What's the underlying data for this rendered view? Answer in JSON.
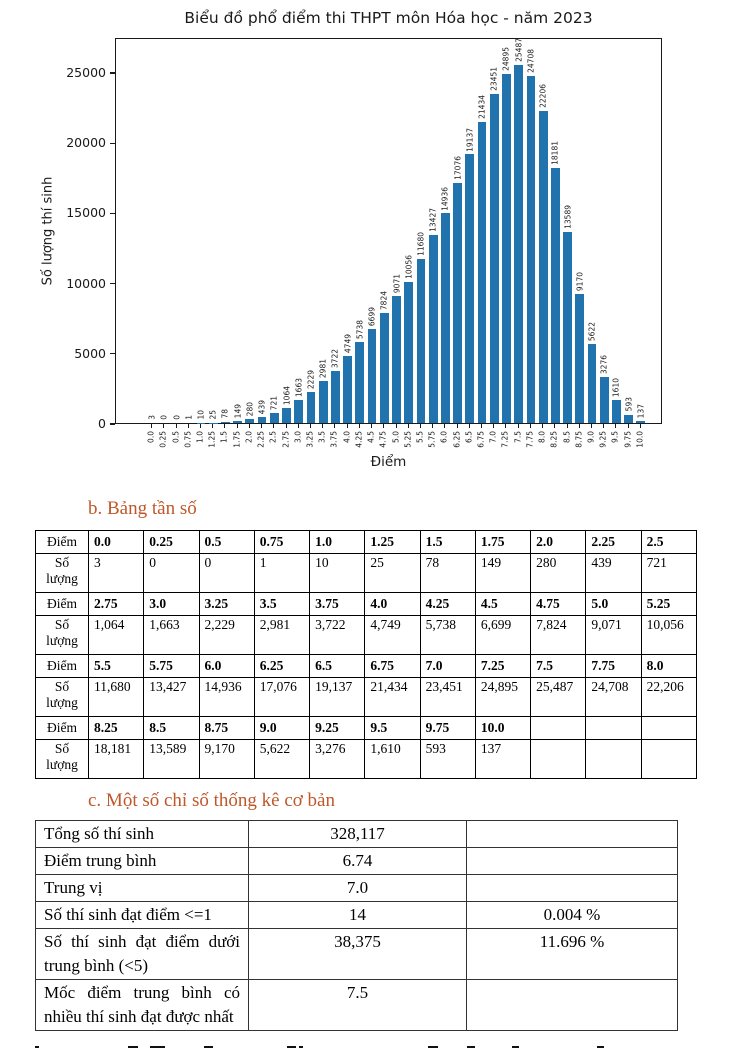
{
  "chart_data": {
    "type": "bar",
    "title": "Biểu đồ phổ điểm thi THPT môn Hóa học - năm 2023",
    "xlabel": "Điểm",
    "ylabel": "Số lượng thí sinh",
    "categories": [
      "0.0",
      "0.25",
      "0.5",
      "0.75",
      "1.0",
      "1.25",
      "1.5",
      "1.75",
      "2.0",
      "2.25",
      "2.5",
      "2.75",
      "3.0",
      "3.25",
      "3.5",
      "3.75",
      "4.0",
      "4.25",
      "4.5",
      "4.75",
      "5.0",
      "5.25",
      "5.5",
      "5.75",
      "6.0",
      "6.25",
      "6.5",
      "6.75",
      "7.0",
      "7.25",
      "7.5",
      "7.75",
      "8.0",
      "8.25",
      "8.5",
      "8.75",
      "9.0",
      "9.25",
      "9.5",
      "9.75",
      "10.0"
    ],
    "values": [
      3,
      0,
      0,
      1,
      10,
      25,
      78,
      149,
      280,
      439,
      721,
      1064,
      1663,
      2229,
      2981,
      3722,
      4749,
      5738,
      6699,
      7824,
      9071,
      10056,
      11680,
      13427,
      14936,
      17076,
      19137,
      21434,
      23451,
      24895,
      25487,
      24708,
      22206,
      18181,
      13589,
      9170,
      5622,
      3276,
      1610,
      593,
      137
    ],
    "yticks": [
      0,
      5000,
      10000,
      15000,
      20000,
      25000
    ],
    "ylim": [
      0,
      27500
    ],
    "grid": false,
    "legend": null,
    "value_labels_rotated": true,
    "bar_color": "#2173ae"
  },
  "sections": {
    "freq_heading": "b. Bảng tần số",
    "stats_heading": "c. Một số chỉ số thống kê cơ bản",
    "heading_color": "#bf5728"
  },
  "freq_table": {
    "score_row_label": "Điểm",
    "count_row_label": "Số lượng",
    "columns_per_row": 11,
    "row_pairs": [
      {
        "scores": [
          "0.0",
          "0.25",
          "0.5",
          "0.75",
          "1.0",
          "1.25",
          "1.5",
          "1.75",
          "2.0",
          "2.25",
          "2.5"
        ],
        "counts": [
          "3",
          "0",
          "0",
          "1",
          "10",
          "25",
          "78",
          "149",
          "280",
          "439",
          "721"
        ]
      },
      {
        "scores": [
          "2.75",
          "3.0",
          "3.25",
          "3.5",
          "3.75",
          "4.0",
          "4.25",
          "4.5",
          "4.75",
          "5.0",
          "5.25"
        ],
        "counts": [
          "1,064",
          "1,663",
          "2,229",
          "2,981",
          "3,722",
          "4,749",
          "5,738",
          "6,699",
          "7,824",
          "9,071",
          "10,056"
        ]
      },
      {
        "scores": [
          "5.5",
          "5.75",
          "6.0",
          "6.25",
          "6.5",
          "6.75",
          "7.0",
          "7.25",
          "7.5",
          "7.75",
          "8.0"
        ],
        "counts": [
          "11,680",
          "13,427",
          "14,936",
          "17,076",
          "19,137",
          "21,434",
          "23,451",
          "24,895",
          "25,487",
          "24,708",
          "22,206"
        ]
      },
      {
        "scores": [
          "8.25",
          "8.5",
          "8.75",
          "9.0",
          "9.25",
          "9.5",
          "9.75",
          "10.0",
          "",
          "",
          ""
        ],
        "counts": [
          "18,181",
          "13,589",
          "9,170",
          "5,622",
          "3,276",
          "1,610",
          "593",
          "137",
          "",
          "",
          ""
        ]
      }
    ]
  },
  "stats_table": {
    "rows": [
      {
        "label": "Tổng số thí sinh",
        "value": "328,117",
        "percent": ""
      },
      {
        "label": "Điểm trung bình",
        "value": "6.74",
        "percent": ""
      },
      {
        "label": "Trung vị",
        "value": "7.0",
        "percent": ""
      },
      {
        "label": "Số thí sinh đạt điểm <=1",
        "value": "14",
        "percent": "0.004 %"
      },
      {
        "label": "Số thí sinh đạt điểm dưới trung bình (<5)",
        "value": "38,375",
        "percent": "11.696 %"
      },
      {
        "label": "Mốc điểm trung bình có nhiều thí sinh đạt được nhất",
        "value": "7.5",
        "percent": ""
      }
    ]
  }
}
